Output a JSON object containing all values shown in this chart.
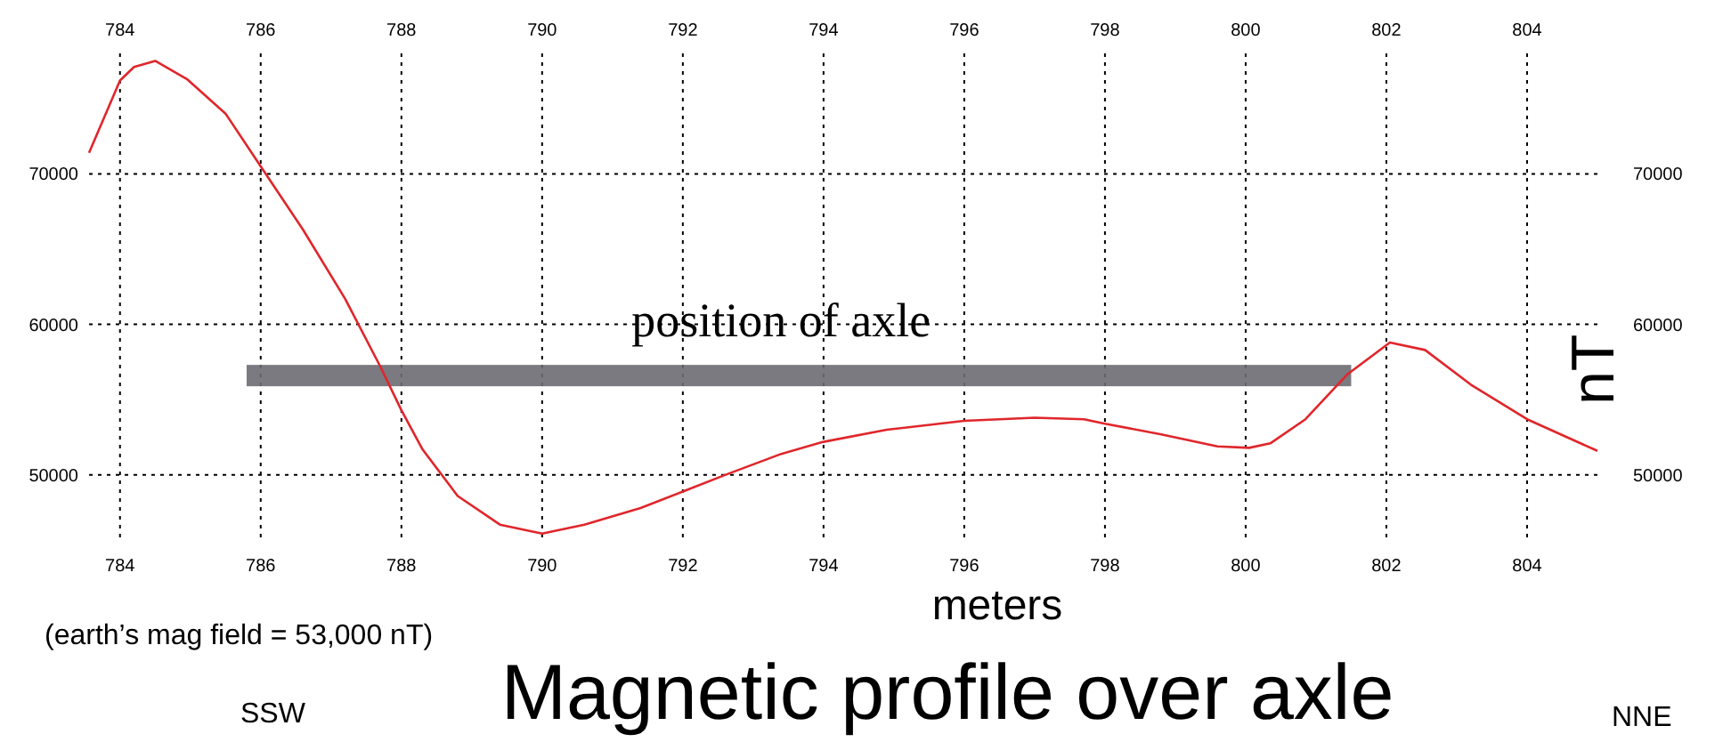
{
  "chart_data": {
    "type": "line",
    "title": "Magnetic profile over axle",
    "xlabel": "meters",
    "y2label": "nT",
    "annotations": [
      "(earth’s mag field = 53,000 nT)",
      "SSW",
      "NNE"
    ],
    "x": [
      783.56,
      784.0,
      784.2,
      784.5,
      784.95,
      785.5,
      786.0,
      786.6,
      787.2,
      787.7,
      788.0,
      788.3,
      788.8,
      789.4,
      790.0,
      790.6,
      791.4,
      792.0,
      792.6,
      793.4,
      794.0,
      794.9,
      796.0,
      797.0,
      797.7,
      798.0,
      798.8,
      799.6,
      800.05,
      800.35,
      800.85,
      801.45,
      802.05,
      802.55,
      803.2,
      804.0,
      805.0
    ],
    "series": [
      {
        "color": "#e0262b",
        "values": [
          71400,
          76200,
          77100,
          77500,
          76300,
          74000,
          70500,
          66300,
          61700,
          57200,
          54300,
          51700,
          48600,
          46700,
          46100,
          46700,
          47800,
          48900,
          50000,
          51400,
          52200,
          53000,
          53600,
          53800,
          53700,
          53400,
          52700,
          51900,
          51800,
          52100,
          53700,
          56700,
          58800,
          58300,
          56000,
          53700,
          51600
        ]
      }
    ],
    "xlim": [
      783.56,
      805.0
    ],
    "xticks": [
      784,
      786,
      788,
      790,
      792,
      794,
      796,
      798,
      800,
      802,
      804
    ],
    "x2lim": [
      783.56,
      805.0
    ],
    "x2ticks": [
      784,
      786,
      788,
      790,
      792,
      794,
      796,
      798,
      800,
      802,
      804
    ],
    "ylim": [
      45500,
      78000
    ],
    "yticks": [
      50000,
      60000,
      70000
    ],
    "y2lim": [
      45500,
      78000
    ],
    "y2ticks": [
      50000,
      60000,
      70000
    ],
    "bands": [
      {
        "axis": "x",
        "from": 785.8,
        "to": 801.5,
        "label": "position of axle",
        "color": "#6b6b72"
      }
    ],
    "grid": true,
    "line_style": "solid",
    "marker": "none"
  }
}
